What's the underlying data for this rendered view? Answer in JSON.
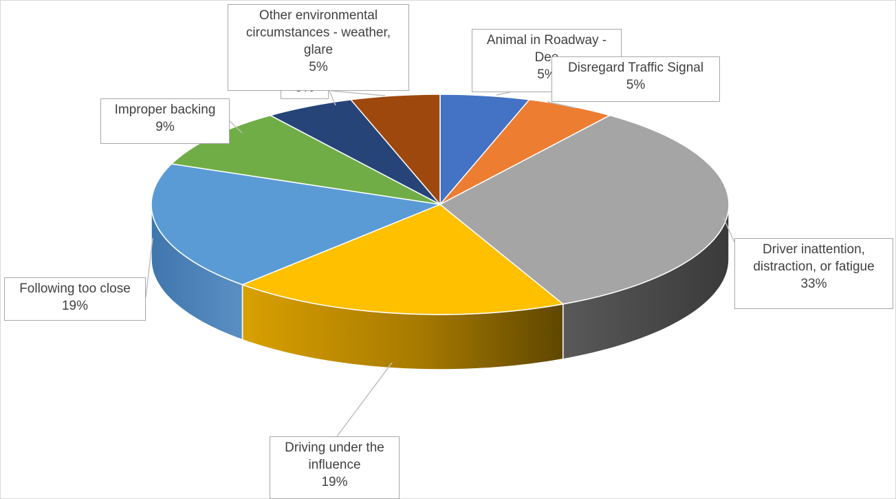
{
  "chart_data": {
    "type": "pie",
    "style": "3d-exploded-view",
    "title": "",
    "slices": [
      {
        "name": "Animal in Roadway - Deer",
        "value": 5,
        "color": "#4472C4"
      },
      {
        "name": "Disregard Traffic Signal",
        "value": 5,
        "color": "#ED7D31"
      },
      {
        "name": "Driver inattention, distraction, or fatigue",
        "value": 33,
        "color": "#A5A5A5"
      },
      {
        "name": "Driving under the influence",
        "value": 19,
        "color": "#FFC000"
      },
      {
        "name": "Following too close",
        "value": 19,
        "color": "#5B9BD5"
      },
      {
        "name": "Improper backing",
        "value": 9,
        "color": "#70AD47"
      },
      {
        "name": "",
        "value": 5,
        "color": "#264478"
      },
      {
        "name": "Other environmental circumstances - weather, glare",
        "value": 5,
        "color": "#9E480E"
      }
    ],
    "labels": [
      {
        "name_lines": "Animal in Roadway -\nDee",
        "pct": "5%"
      },
      {
        "name_lines": "Disregard Traffic Signal",
        "pct": "5%"
      },
      {
        "name_lines": "Driver inattention,\ndistraction, or fatigue",
        "pct": "33%"
      },
      {
        "name_lines": "Driving under the\ninfluence",
        "pct": "19%"
      },
      {
        "name_lines": "Following too close",
        "pct": "19%"
      },
      {
        "name_lines": "Improper backing",
        "pct": "9%"
      },
      {
        "name_lines": "",
        "pct": "5%"
      },
      {
        "name_lines": "Other environmental\ncircumstances - weather,\nglare",
        "pct": "5%"
      }
    ]
  }
}
